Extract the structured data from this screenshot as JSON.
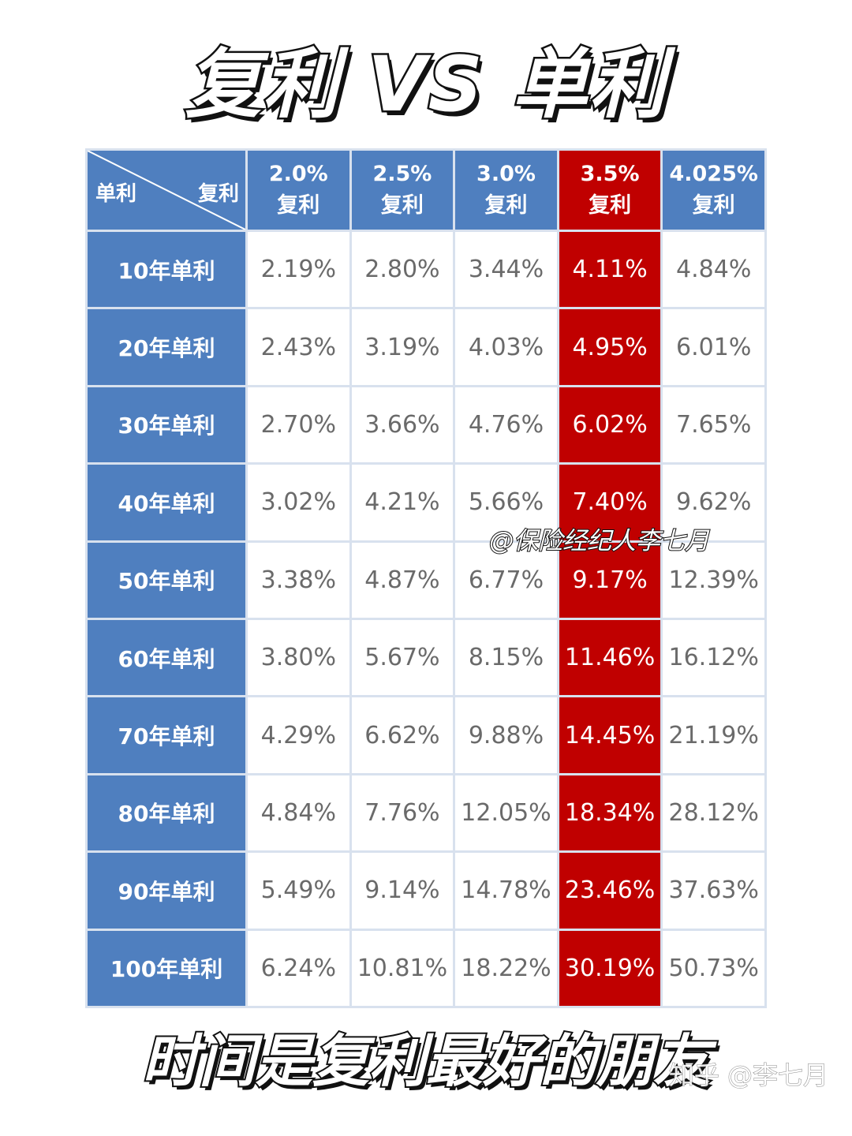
{
  "title": "复利 VS 单利",
  "table": {
    "corner_row_label": "单利",
    "corner_col_label": "复利",
    "columns": [
      {
        "rate": "2.0%",
        "label": "复利"
      },
      {
        "rate": "2.5%",
        "label": "复利"
      },
      {
        "rate": "3.0%",
        "label": "复利"
      },
      {
        "rate": "3.5%",
        "label": "复利"
      },
      {
        "rate": "4.025%",
        "label": "复利"
      }
    ],
    "highlight_column_index": 3,
    "rows": [
      {
        "label": "10年单利",
        "values": [
          "2.19%",
          "2.80%",
          "3.44%",
          "4.11%",
          "4.84%"
        ]
      },
      {
        "label": "20年单利",
        "values": [
          "2.43%",
          "3.19%",
          "4.03%",
          "4.95%",
          "6.01%"
        ]
      },
      {
        "label": "30年单利",
        "values": [
          "2.70%",
          "3.66%",
          "4.76%",
          "6.02%",
          "7.65%"
        ]
      },
      {
        "label": "40年单利",
        "values": [
          "3.02%",
          "4.21%",
          "5.66%",
          "7.40%",
          "9.62%"
        ]
      },
      {
        "label": "50年单利",
        "values": [
          "3.38%",
          "4.87%",
          "6.77%",
          "9.17%",
          "12.39%"
        ]
      },
      {
        "label": "60年单利",
        "values": [
          "3.80%",
          "5.67%",
          "8.15%",
          "11.46%",
          "16.12%"
        ]
      },
      {
        "label": "70年单利",
        "values": [
          "4.29%",
          "6.62%",
          "9.88%",
          "14.45%",
          "21.19%"
        ]
      },
      {
        "label": "80年单利",
        "values": [
          "4.84%",
          "7.76%",
          "12.05%",
          "18.34%",
          "28.12%"
        ]
      },
      {
        "label": "90年单利",
        "values": [
          "5.49%",
          "9.14%",
          "14.78%",
          "23.46%",
          "37.63%"
        ]
      },
      {
        "label": "100年单利",
        "values": [
          "6.24%",
          "10.81%",
          "18.22%",
          "30.19%",
          "50.73%"
        ]
      }
    ]
  },
  "watermark": "@保险经纪人李七月",
  "footer": "时间是复利最好的朋友",
  "zhihu_mark": "知乎 @李七月",
  "colors": {
    "header_blue": "#4f7fbf",
    "highlight_red": "#c00000",
    "cell_text": "#6a6a6a",
    "grid_line": "#d8e1ee"
  }
}
